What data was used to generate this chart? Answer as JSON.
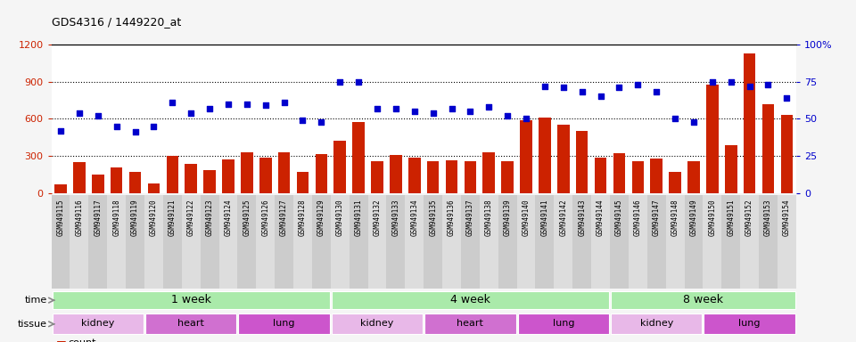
{
  "title": "GDS4316 / 1449220_at",
  "samples": [
    "GSM949115",
    "GSM949116",
    "GSM949117",
    "GSM949118",
    "GSM949119",
    "GSM949120",
    "GSM949121",
    "GSM949122",
    "GSM949123",
    "GSM949124",
    "GSM949125",
    "GSM949126",
    "GSM949127",
    "GSM949128",
    "GSM949129",
    "GSM949130",
    "GSM949131",
    "GSM949132",
    "GSM949133",
    "GSM949134",
    "GSM949135",
    "GSM949136",
    "GSM949137",
    "GSM949138",
    "GSM949139",
    "GSM949140",
    "GSM949141",
    "GSM949142",
    "GSM949143",
    "GSM949144",
    "GSM949145",
    "GSM949146",
    "GSM949147",
    "GSM949148",
    "GSM949149",
    "GSM949150",
    "GSM949151",
    "GSM949152",
    "GSM949153",
    "GSM949154"
  ],
  "counts": [
    75,
    250,
    150,
    210,
    170,
    80,
    300,
    240,
    185,
    275,
    330,
    285,
    330,
    175,
    315,
    420,
    575,
    255,
    310,
    285,
    255,
    265,
    255,
    330,
    255,
    590,
    610,
    555,
    500,
    285,
    320,
    255,
    280,
    175,
    255,
    875,
    390,
    1130,
    720,
    635
  ],
  "percentile_pct": [
    42,
    54,
    52,
    45,
    41,
    45,
    61,
    54,
    57,
    60,
    60,
    59,
    61,
    49,
    48,
    75,
    75,
    57,
    57,
    55,
    54,
    57,
    55,
    58,
    52,
    50,
    72,
    71,
    68,
    65,
    71,
    73,
    68,
    50,
    48,
    75,
    75,
    72,
    73,
    64
  ],
  "bar_color": "#cc2200",
  "scatter_color": "#0000cc",
  "ylim_left": [
    0,
    1200
  ],
  "ylim_right": [
    0,
    100
  ],
  "yticks_left": [
    0,
    300,
    600,
    900,
    1200
  ],
  "yticks_right": [
    0,
    25,
    50,
    75,
    100
  ],
  "grid_lines": [
    300,
    600,
    900
  ],
  "time_groups": [
    {
      "label": "1 week",
      "start": 0,
      "end": 15
    },
    {
      "label": "4 week",
      "start": 15,
      "end": 30
    },
    {
      "label": "8 week",
      "start": 30,
      "end": 40
    }
  ],
  "tissue_groups": [
    {
      "label": "kidney",
      "start": 0,
      "end": 5,
      "color": "#e8b8e8"
    },
    {
      "label": "heart",
      "start": 5,
      "end": 10,
      "color": "#d070d0"
    },
    {
      "label": "lung",
      "start": 10,
      "end": 15,
      "color": "#cc55cc"
    },
    {
      "label": "kidney",
      "start": 15,
      "end": 20,
      "color": "#e8b8e8"
    },
    {
      "label": "heart",
      "start": 20,
      "end": 25,
      "color": "#d070d0"
    },
    {
      "label": "lung",
      "start": 25,
      "end": 30,
      "color": "#cc55cc"
    },
    {
      "label": "kidney",
      "start": 30,
      "end": 35,
      "color": "#e8b8e8"
    },
    {
      "label": "lung",
      "start": 35,
      "end": 40,
      "color": "#cc55cc"
    }
  ],
  "time_color": "#aaeaaa",
  "bg_color": "#f5f5f5",
  "plot_bg": "#ffffff",
  "xticklabel_bg_even": "#cccccc",
  "xticklabel_bg_odd": "#dddddd"
}
